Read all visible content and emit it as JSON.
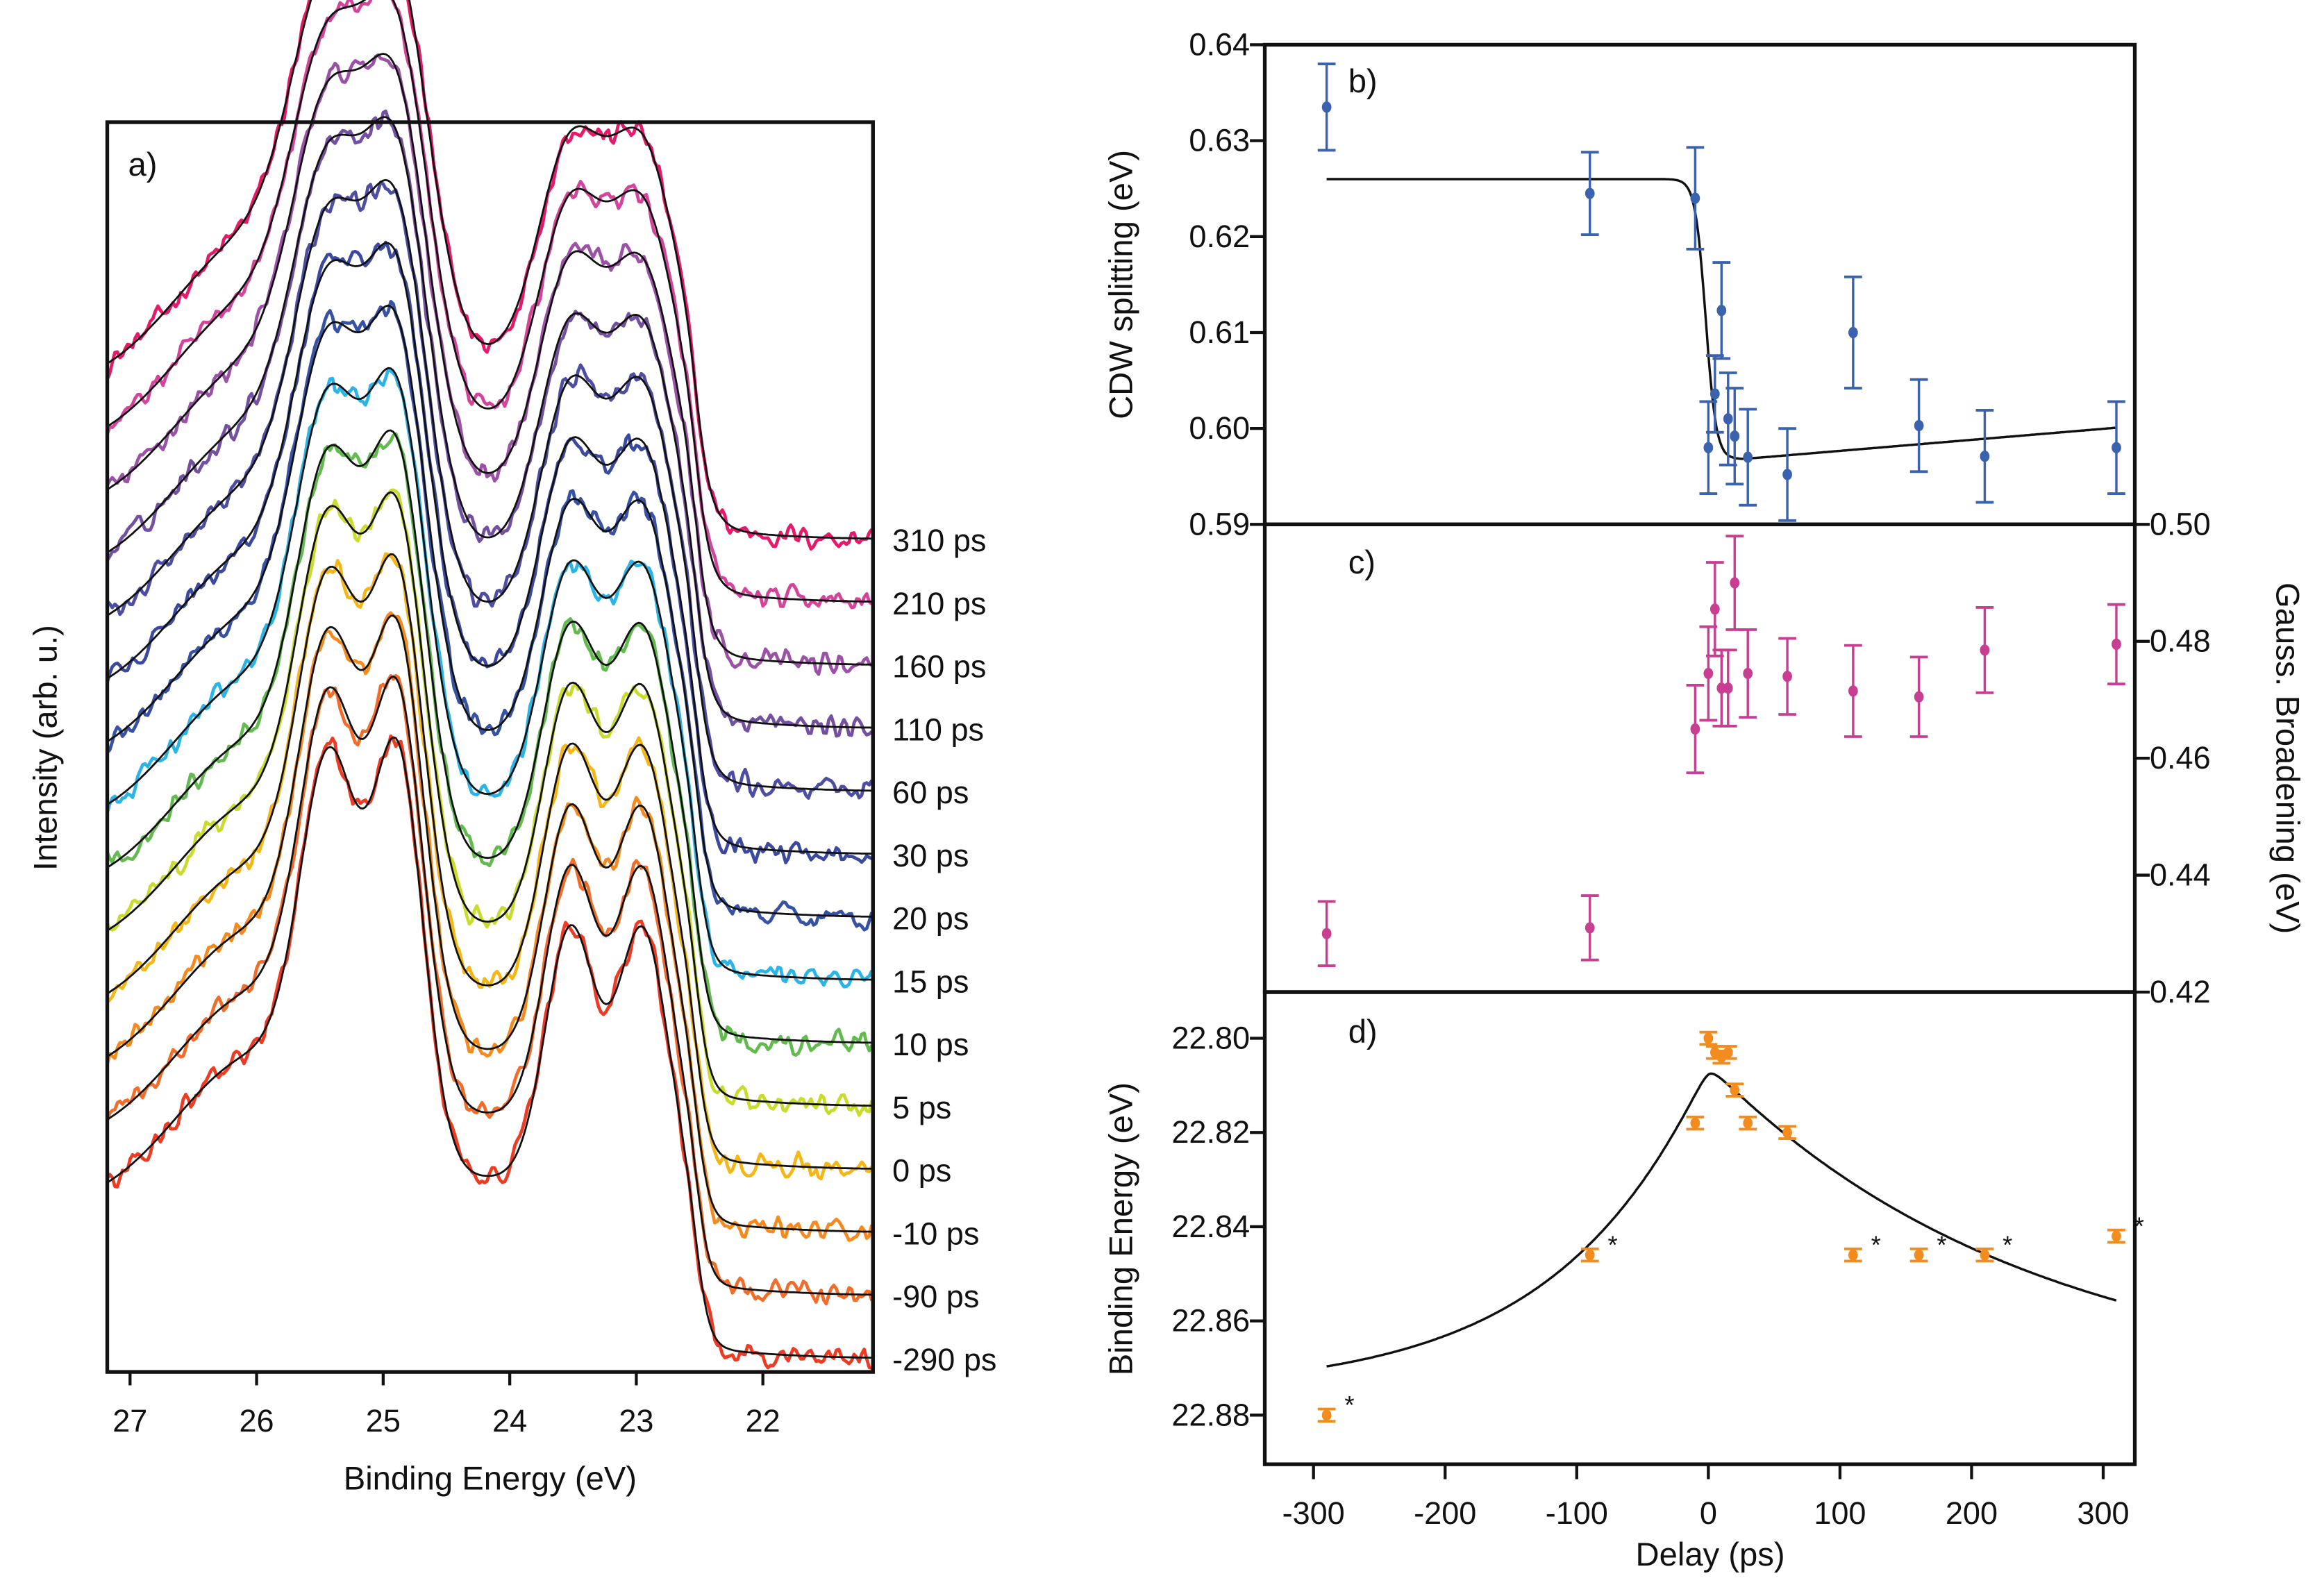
{
  "chart_data": [
    {
      "panel": "a",
      "type": "line",
      "label": "a)",
      "xlabel": "Binding Energy (eV)",
      "ylabel": "Intensity (arb. u.)",
      "xlim": [
        27.18,
        21.13
      ],
      "xticks": [
        27,
        26,
        25,
        24,
        23,
        22
      ],
      "model_peaks_eV": [
        25.42,
        24.88,
        23.52,
        22.95
      ],
      "series": [
        {
          "name": "310 ps",
          "color": "#e8196b"
        },
        {
          "name": "210 ps",
          "color": "#d4449b"
        },
        {
          "name": "160 ps",
          "color": "#9b52a6"
        },
        {
          "name": "110 ps",
          "color": "#7450a0"
        },
        {
          "name": "60 ps",
          "color": "#4d4ea2"
        },
        {
          "name": "30 ps",
          "color": "#3b4a9e"
        },
        {
          "name": "20 ps",
          "color": "#3751a3"
        },
        {
          "name": "15 ps",
          "color": "#2bb5e6"
        },
        {
          "name": "10 ps",
          "color": "#63bb4f"
        },
        {
          "name": "5 ps",
          "color": "#c9dc2b"
        },
        {
          "name": "0 ps",
          "color": "#f5b715"
        },
        {
          "name": "-10 ps",
          "color": "#f58a1f"
        },
        {
          "name": "-90 ps",
          "color": "#f26c2a"
        },
        {
          "name": "-290 ps",
          "color": "#ee3b24"
        }
      ],
      "fit_color": "#111111"
    },
    {
      "panel": "b",
      "type": "scatter",
      "label": "b)",
      "ylabel": "CDW splitting (eV)",
      "ylim": [
        0.59,
        0.64
      ],
      "yticks": [
        0.59,
        0.6,
        0.61,
        0.62,
        0.63,
        0.64
      ],
      "color": "#3a62ad",
      "x": [
        -290,
        -90,
        -10,
        0,
        5,
        10,
        15,
        20,
        30,
        60,
        110,
        160,
        210,
        310
      ],
      "values": [
        0.6335,
        0.6245,
        0.624,
        0.598,
        0.6036,
        0.6123,
        0.601,
        0.5992,
        0.597,
        0.5952,
        0.61,
        0.6003,
        0.5971,
        0.598
      ],
      "errors": [
        0.0045,
        0.0043,
        0.0053,
        0.0048,
        0.004,
        0.005,
        0.0048,
        0.005,
        0.005,
        0.0048,
        0.0058,
        0.0048,
        0.0048,
        0.0048
      ],
      "fit": {
        "before": 0.626,
        "after": 0.5968,
        "t0": -2,
        "width": 4,
        "t_lin": 25,
        "slope": 1.15e-05
      }
    },
    {
      "panel": "c",
      "type": "scatter",
      "label": "c)",
      "ylabel": "Gauss. Broadening (eV)",
      "axis_side": "right",
      "ylim": [
        0.42,
        0.5
      ],
      "yticks": [
        0.42,
        0.44,
        0.46,
        0.48,
        0.5
      ],
      "color": "#c83f91",
      "x": [
        -290,
        -90,
        -10,
        0,
        5,
        10,
        15,
        20,
        30,
        60,
        110,
        160,
        210,
        310
      ],
      "values": [
        0.43,
        0.431,
        0.465,
        0.4745,
        0.4855,
        0.472,
        0.472,
        0.49,
        0.4745,
        0.474,
        0.4715,
        0.4705,
        0.4785,
        0.4795
      ],
      "errors": [
        0.0055,
        0.0055,
        0.0075,
        0.008,
        0.008,
        0.0065,
        0.0065,
        0.008,
        0.0075,
        0.0065,
        0.0078,
        0.0068,
        0.0073,
        0.0068
      ]
    },
    {
      "panel": "d",
      "type": "scatter",
      "label": "d)",
      "ylabel": "Binding Energy  (eV)",
      "ylim": [
        22.79,
        22.89
      ],
      "inverted": true,
      "yticks": [
        22.8,
        22.82,
        22.84,
        22.86,
        22.88
      ],
      "color": "#f28c1e",
      "x": [
        -290,
        -90,
        -10,
        0,
        5,
        10,
        15,
        20,
        30,
        60,
        110,
        160,
        210,
        310
      ],
      "values": [
        22.88,
        22.846,
        22.818,
        22.8,
        22.803,
        22.804,
        22.803,
        22.811,
        22.818,
        22.82,
        22.846,
        22.846,
        22.846,
        22.842
      ],
      "errors": [
        0.0013,
        0.0013,
        0.0013,
        0.0013,
        0.0013,
        0.0013,
        0.0013,
        0.0013,
        0.0013,
        0.0013,
        0.0013,
        0.0013,
        0.0013,
        0.0013
      ],
      "starred": [
        true,
        true,
        false,
        false,
        false,
        false,
        false,
        false,
        false,
        false,
        true,
        true,
        true,
        true
      ],
      "star_symbol": "*",
      "fit": {
        "peak": 22.8075,
        "asymptote": 22.875,
        "t0": 2,
        "tau_rise": 113,
        "tau_decay": 242
      }
    }
  ],
  "shared_x": {
    "xlabel": "Delay (ps)",
    "xlim": [
      -337,
      324
    ],
    "xticks": [
      -300,
      -200,
      -100,
      0,
      100,
      200,
      300
    ]
  }
}
